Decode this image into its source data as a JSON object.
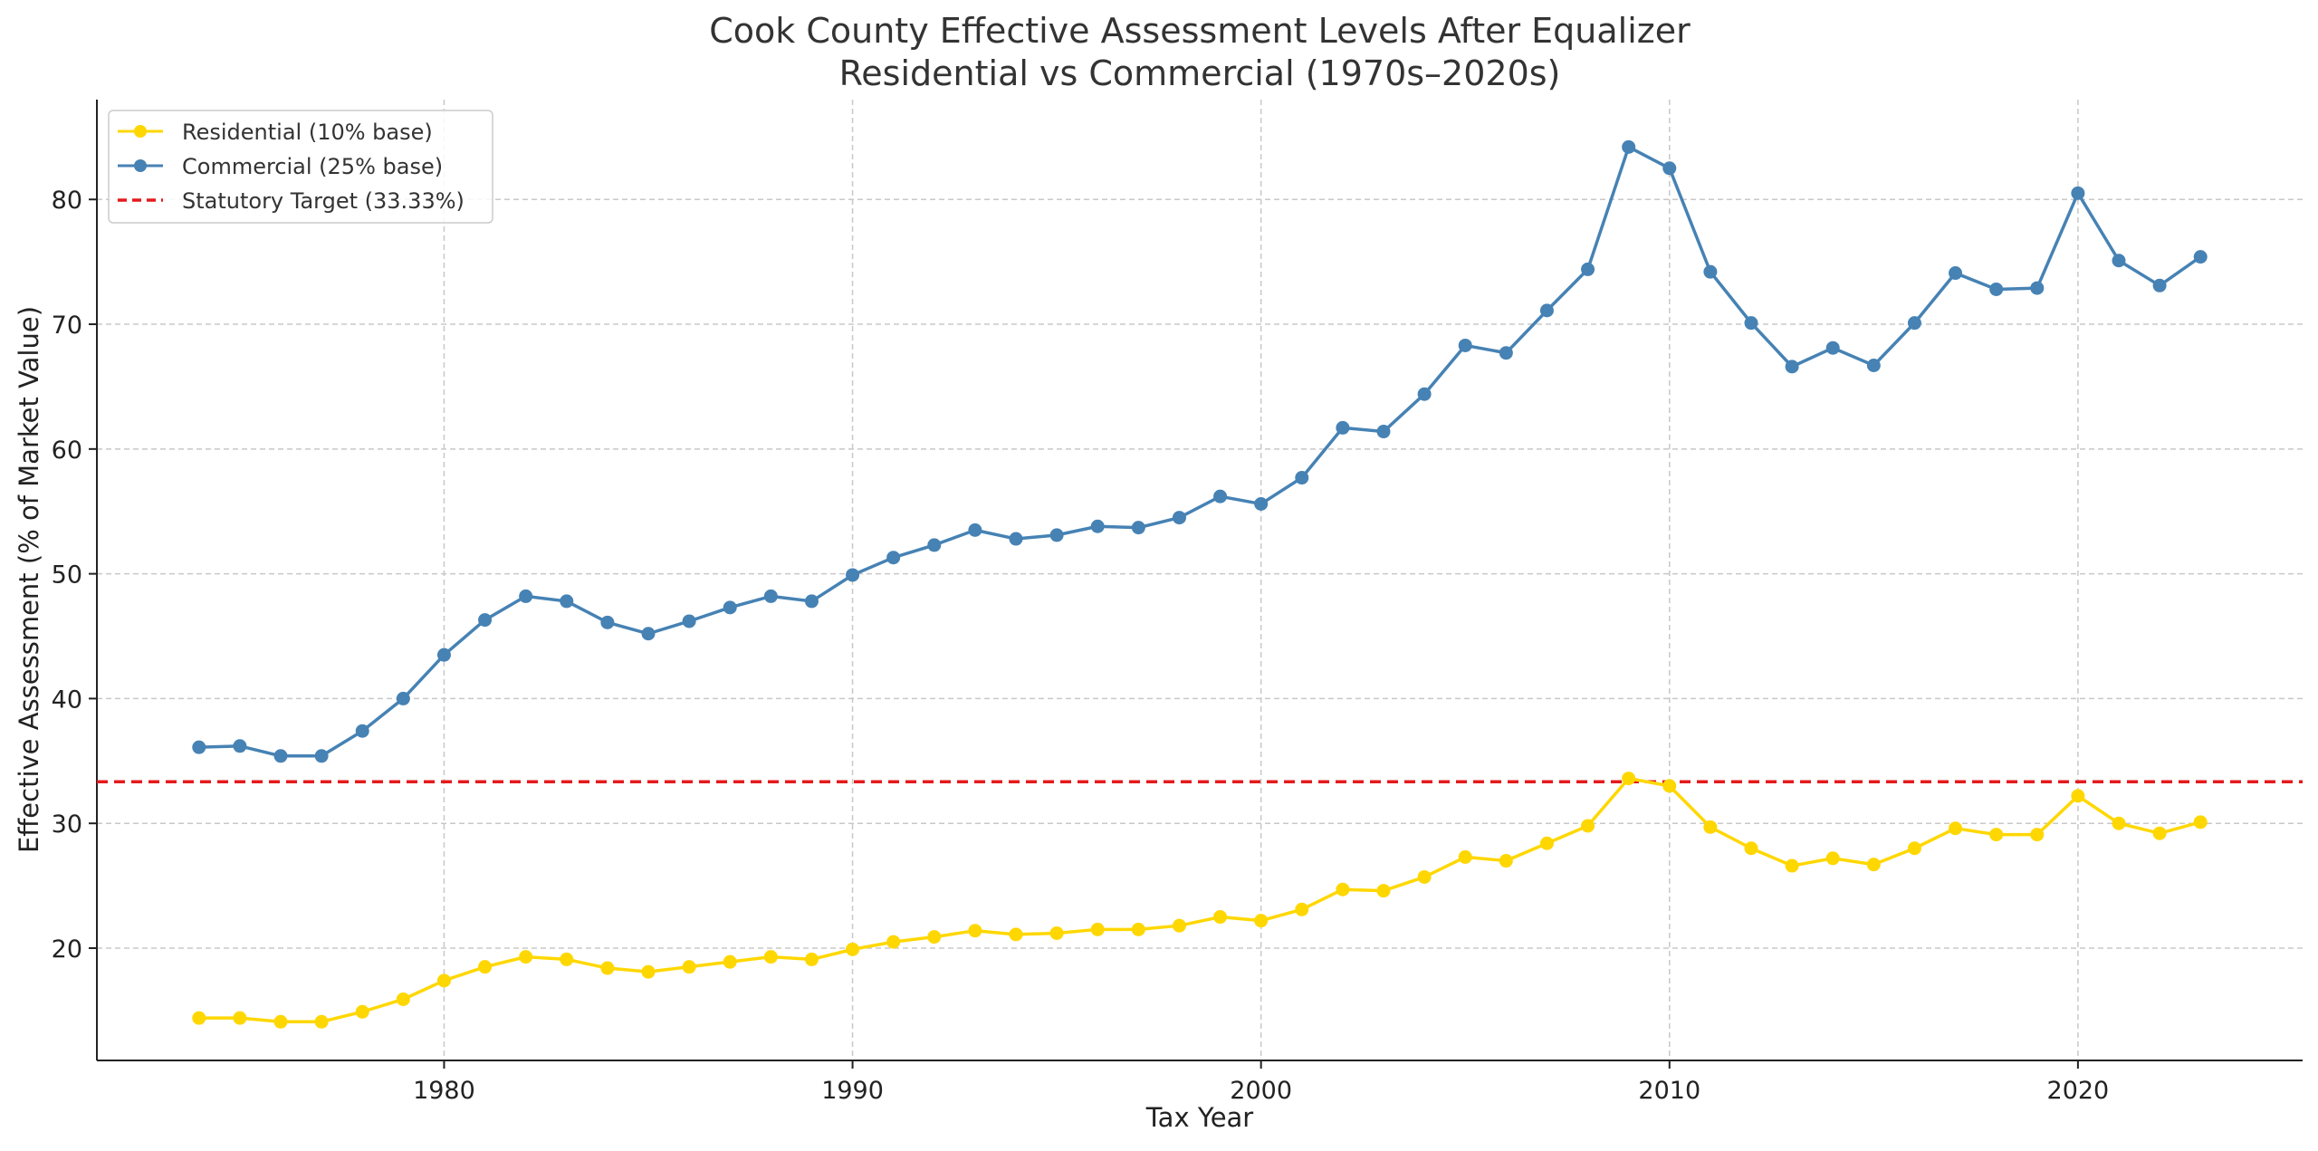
{
  "chart_data": {
    "type": "line",
    "title_line1": "Cook County Effective Assessment Levels After Equalizer",
    "title_line2": "Residential vs Commercial (1970s–2020s)",
    "xlabel": "Tax Year",
    "ylabel": "Effective Assessment (% of Market Value)",
    "xlim": [
      1971.5,
      2025.5
    ],
    "ylim": [
      11,
      88
    ],
    "xticks": [
      1980,
      1990,
      2000,
      2010,
      2020
    ],
    "yticks": [
      20,
      30,
      40,
      50,
      60,
      70,
      80
    ],
    "grid": true,
    "legend_position": "upper-left",
    "x": [
      1974,
      1975,
      1976,
      1977,
      1978,
      1979,
      1980,
      1981,
      1982,
      1983,
      1984,
      1985,
      1986,
      1987,
      1988,
      1989,
      1990,
      1991,
      1992,
      1993,
      1994,
      1995,
      1996,
      1997,
      1998,
      1999,
      2000,
      2001,
      2002,
      2003,
      2004,
      2005,
      2006,
      2007,
      2008,
      2009,
      2010,
      2011,
      2012,
      2013,
      2014,
      2015,
      2016,
      2017,
      2018,
      2019,
      2020,
      2021,
      2022,
      2023
    ],
    "series": [
      {
        "name": "Residential (10% base)",
        "color": "#FFD700",
        "marker": "circle",
        "values": [
          14.4,
          14.4,
          14.1,
          14.1,
          14.9,
          15.9,
          17.4,
          18.5,
          19.3,
          19.1,
          18.4,
          18.1,
          18.5,
          18.9,
          19.3,
          19.1,
          19.9,
          20.5,
          20.9,
          21.4,
          21.1,
          21.2,
          21.5,
          21.5,
          21.8,
          22.5,
          22.2,
          23.1,
          24.7,
          24.6,
          25.7,
          27.3,
          27.0,
          28.4,
          29.8,
          33.6,
          33.0,
          29.7,
          28.0,
          26.6,
          27.2,
          26.7,
          28.0,
          29.6,
          29.1,
          29.1,
          32.2,
          30.0,
          29.2,
          30.1
        ]
      },
      {
        "name": "Commercial (25% base)",
        "color": "#4682B4",
        "marker": "circle",
        "values": [
          36.1,
          36.2,
          35.4,
          35.4,
          37.4,
          40.0,
          43.5,
          46.3,
          48.2,
          47.8,
          46.1,
          45.2,
          46.2,
          47.3,
          48.2,
          47.8,
          49.9,
          51.3,
          52.3,
          53.5,
          52.8,
          53.1,
          53.8,
          53.7,
          54.5,
          56.2,
          55.6,
          57.7,
          61.7,
          61.4,
          64.4,
          68.3,
          67.7,
          71.1,
          74.4,
          84.2,
          82.5,
          74.2,
          70.1,
          66.6,
          68.1,
          66.7,
          70.1,
          74.1,
          72.8,
          72.9,
          80.5,
          75.1,
          73.1,
          75.4
        ]
      }
    ],
    "reference_line": {
      "name": "Statutory Target (33.33%)",
      "value": 33.33,
      "color": "#E41A1C",
      "style": "dashed"
    }
  }
}
